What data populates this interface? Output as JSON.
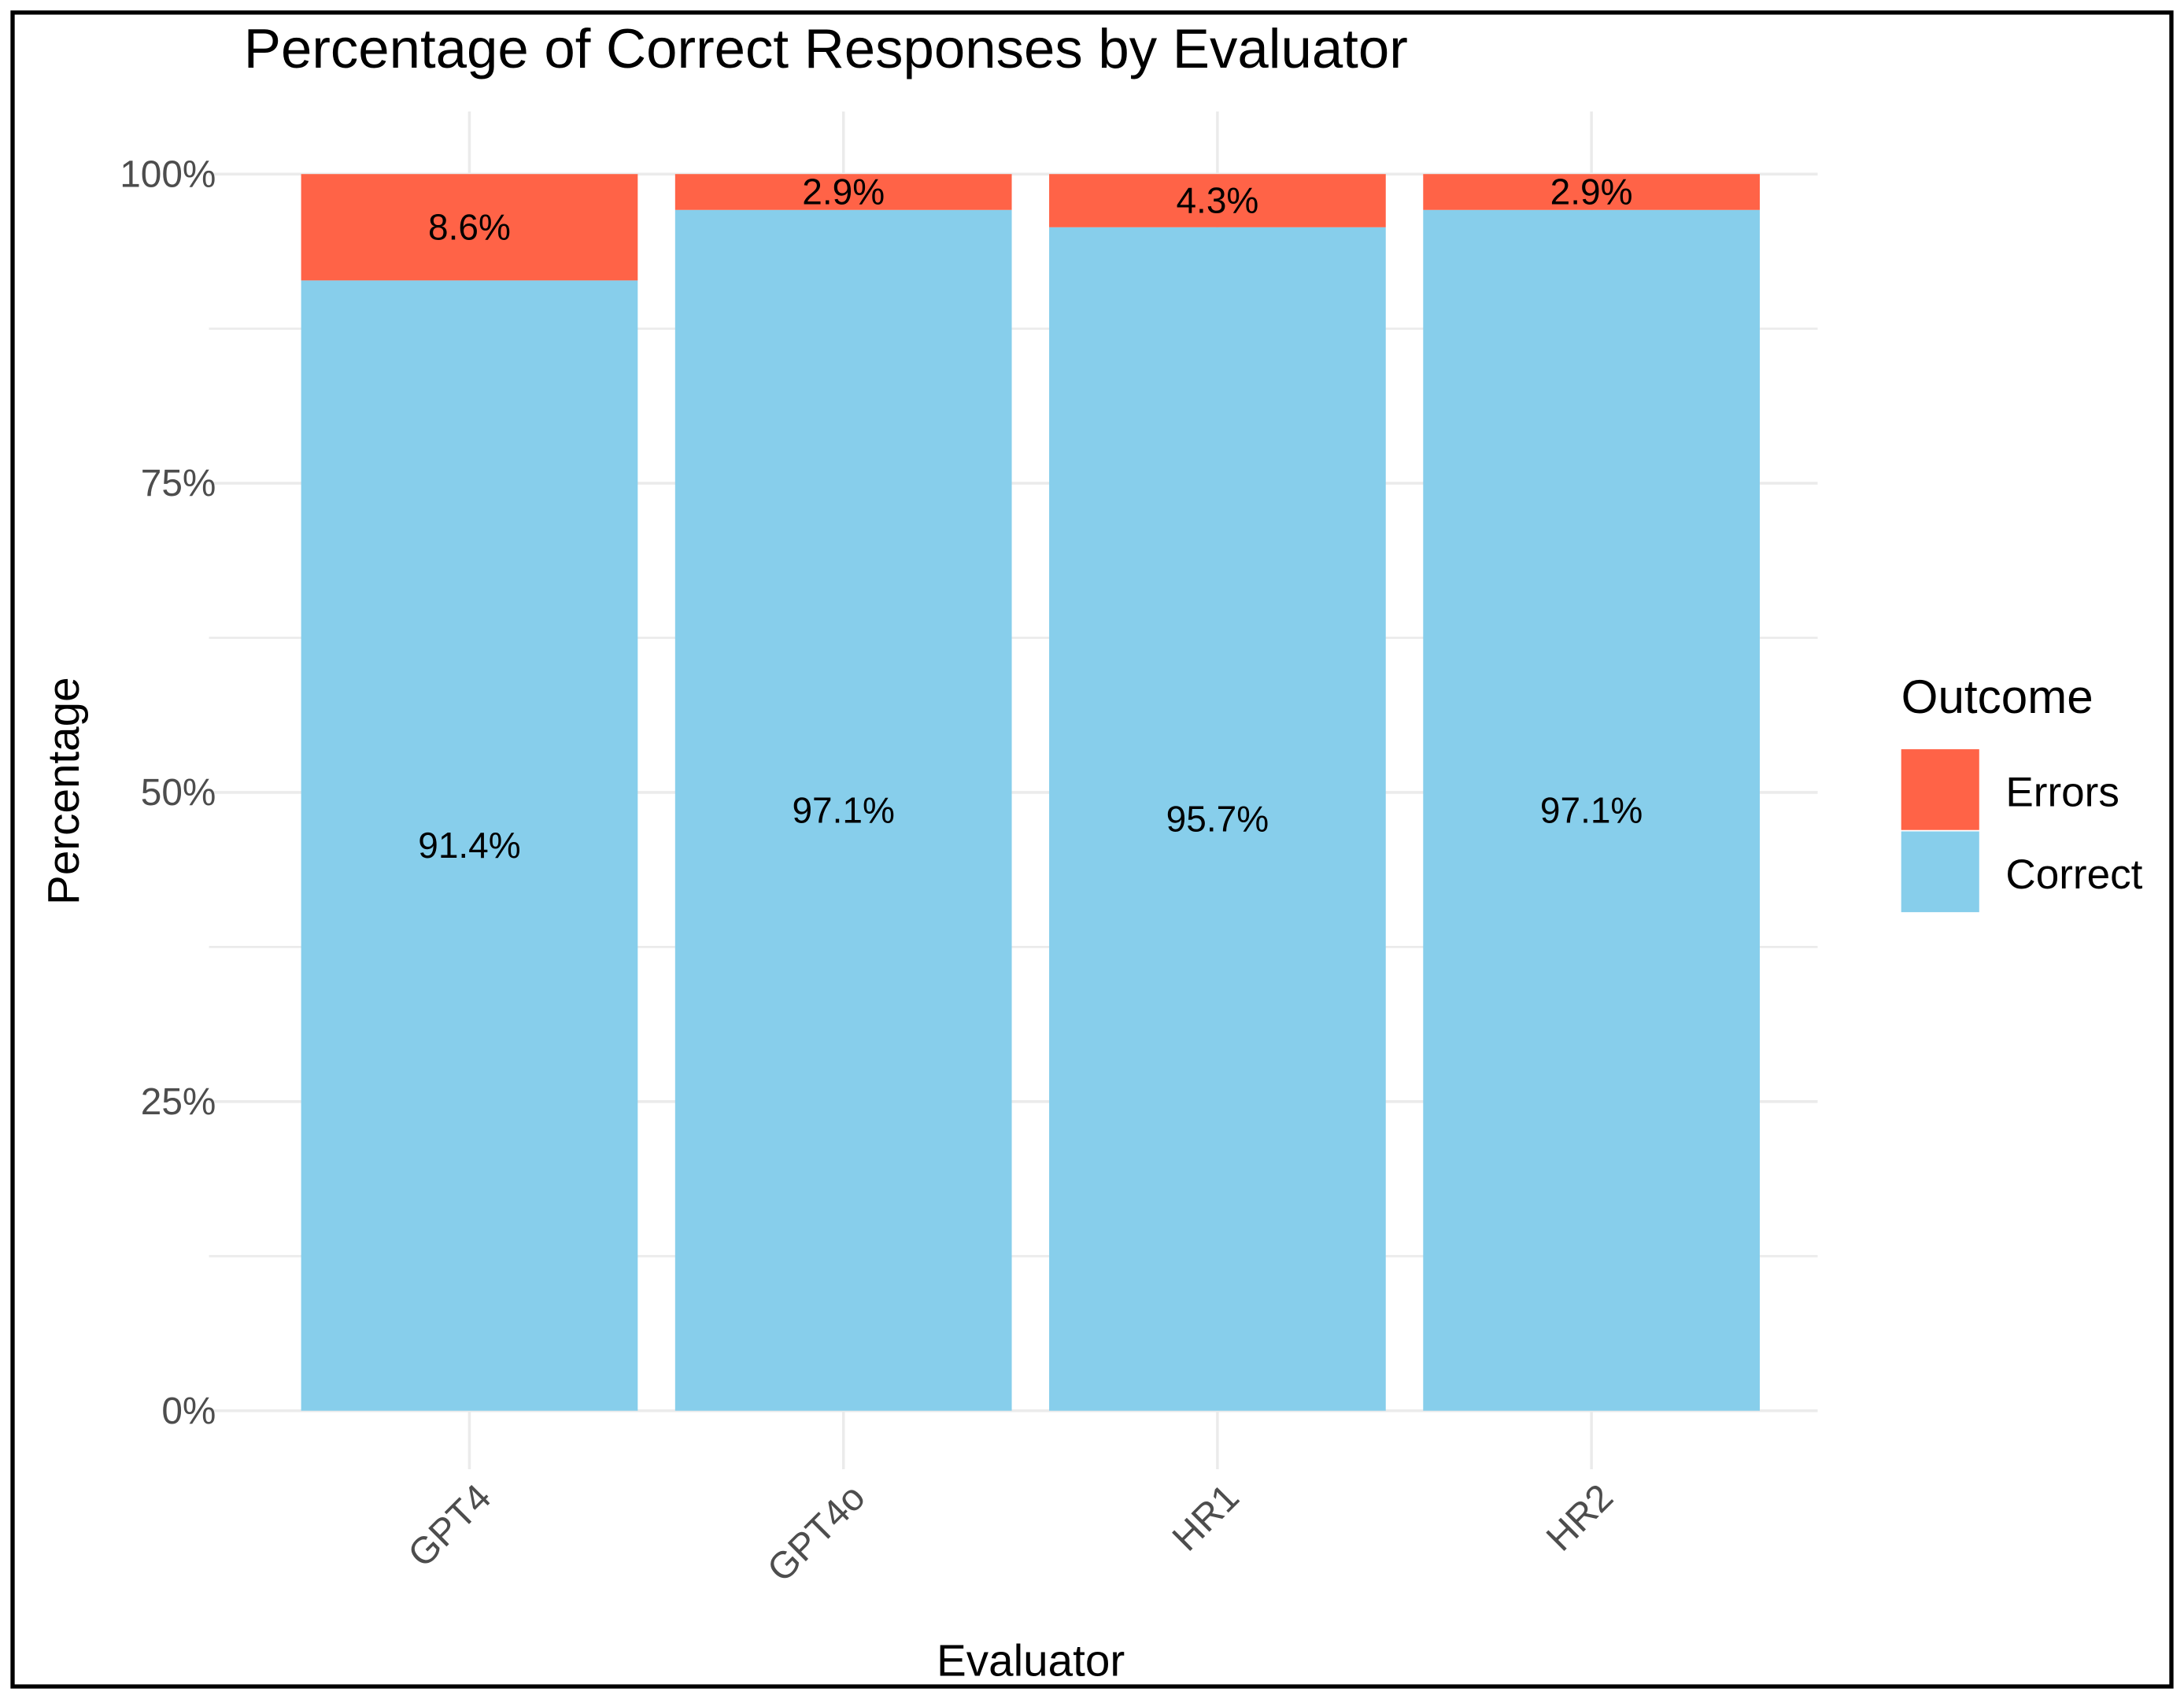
{
  "chart_data": {
    "type": "stacked_bar",
    "title": "Percentage of Correct Responses by Evaluator",
    "x_label": "Evaluator",
    "y_label": "Percentage",
    "legend_title": "Outcome",
    "legend_position": "right",
    "categories": [
      "GPT4",
      "GPT4o",
      "HR1",
      "HR2"
    ],
    "series": [
      {
        "name": "Correct",
        "color": "#87ceeb",
        "values": [
          91.4,
          97.1,
          95.7,
          97.1
        ],
        "value_labels": [
          "91.4%",
          "97.1%",
          "95.7%",
          "97.1%"
        ]
      },
      {
        "name": "Errors",
        "color": "#ff6347",
        "values": [
          8.6,
          2.9,
          4.3,
          2.9
        ],
        "value_labels": [
          "8.6%",
          "2.9%",
          "4.3%",
          "2.9%"
        ]
      }
    ],
    "ylim": [
      0,
      100
    ],
    "yticks": [
      {
        "value": 0,
        "label": "0%"
      },
      {
        "value": 25,
        "label": "25%"
      },
      {
        "value": 50,
        "label": "50%"
      },
      {
        "value": 75,
        "label": "75%"
      },
      {
        "value": 100,
        "label": "100%"
      }
    ],
    "minor_yticks": [
      12.5,
      37.5,
      62.5,
      87.5
    ],
    "grid": true
  }
}
